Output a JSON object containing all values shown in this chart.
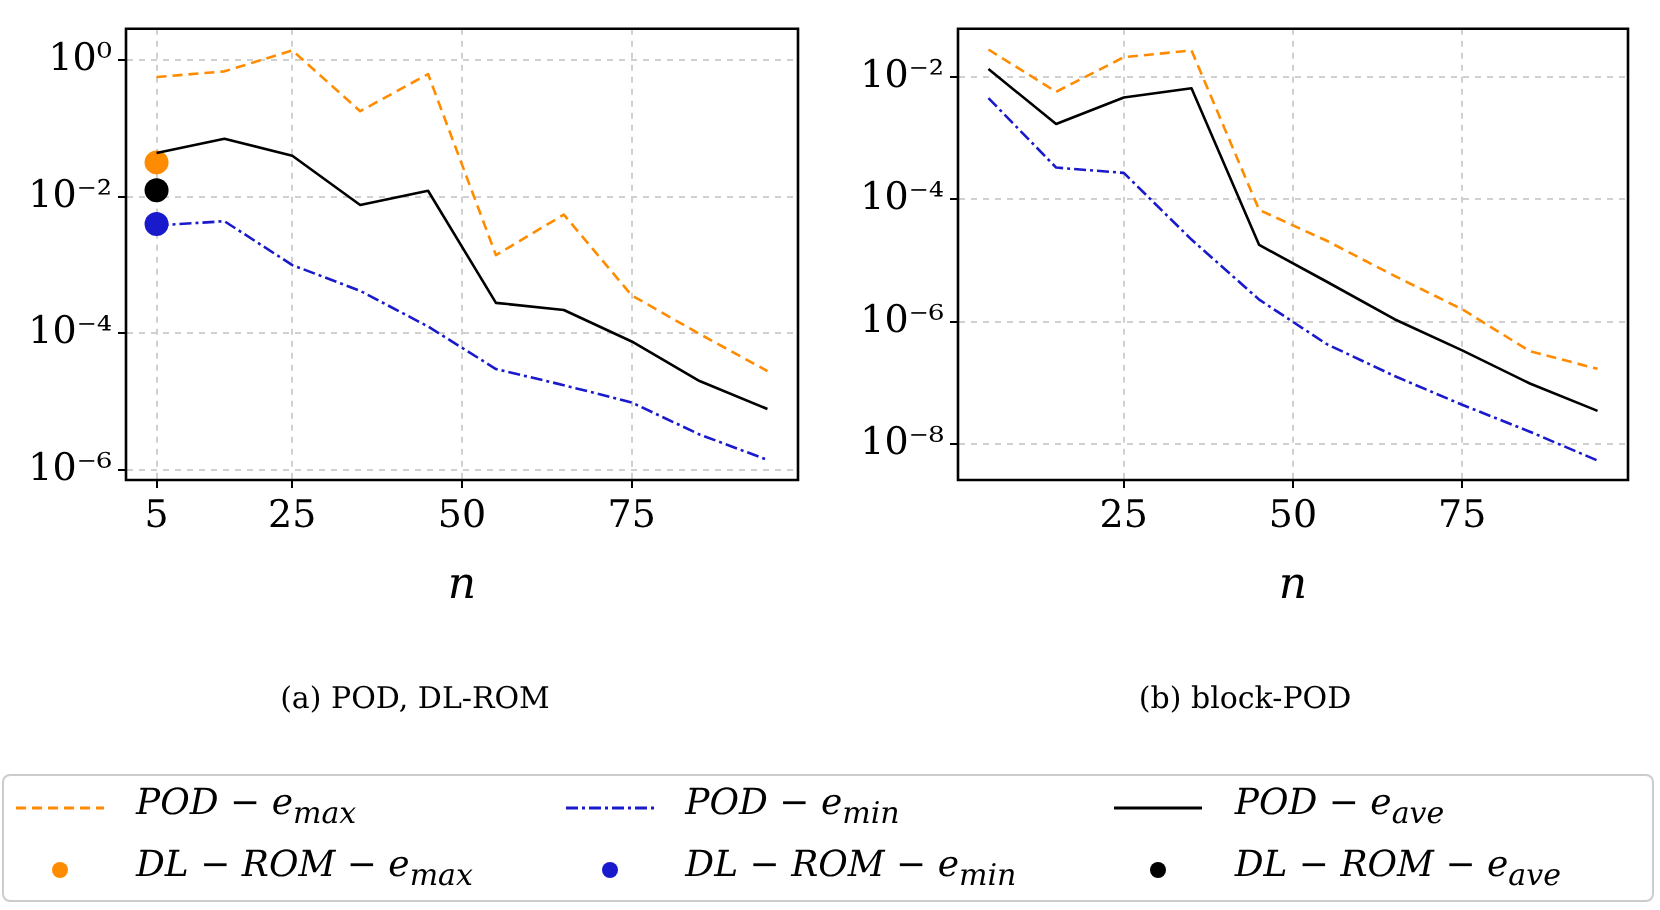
{
  "chart_data": [
    {
      "type": "line",
      "title": "(a) POD, DL-ROM",
      "xlabel": "n",
      "log": "y",
      "grid": true,
      "legend": "bottom",
      "marker": "none",
      "xlim": [
        0.5,
        99.5
      ],
      "xticks": [
        5,
        25,
        50,
        75
      ],
      "ylim": [
        7.1e-07,
        2.9
      ],
      "yticks": [
        {
          "value": 1,
          "label": "10⁰"
        },
        {
          "value": 0.01,
          "label": "10⁻²"
        },
        {
          "value": 0.0001,
          "label": "10⁻⁴"
        },
        {
          "value": 1e-06,
          "label": "10⁻⁶"
        }
      ],
      "x": [
        5,
        15,
        25,
        35,
        45,
        55,
        65,
        75,
        85,
        95
      ],
      "series": [
        {
          "name": "POD − e$_{max}$",
          "color": "#ff8c00",
          "line_style": "dashed",
          "values": [
            0.57,
            0.69,
            1.4,
            0.18,
            0.63,
            0.0014,
            0.0055,
            0.00036,
            9.8e-05,
            2.8e-05
          ]
        },
        {
          "name": "POD − e$_{min}$",
          "color": "#1a1acd",
          "line_style": "dashdot",
          "values": [
            0.0038,
            0.0044,
            0.001,
            0.00042,
            0.000126,
            3e-05,
            1.74e-05,
            9.7e-06,
            3.3e-06,
            1.4e-06
          ]
        },
        {
          "name": "POD − e$_{ave}$",
          "color": "#000000",
          "line_style": "solid",
          "values": [
            0.044,
            0.071,
            0.04,
            0.0076,
            0.0123,
            0.00028,
            0.00022,
            7.6e-05,
            2e-05,
            7.8e-06
          ]
        },
        {
          "name": "DL − ROM − e$_{max}$",
          "type": "scatter",
          "marker": "circle",
          "color": "#ff8c00",
          "values": [
            0.032,
            null,
            null,
            null,
            null,
            null,
            null,
            null,
            null,
            null
          ]
        },
        {
          "name": "DL − ROM − e$_{min}$",
          "type": "scatter",
          "marker": "circle",
          "color": "#1a1acd",
          "values": [
            0.004,
            null,
            null,
            null,
            null,
            null,
            null,
            null,
            null,
            null
          ]
        },
        {
          "name": "DL − ROM − e$_{ave}$",
          "type": "scatter",
          "marker": "circle",
          "color": "#000000",
          "values": [
            0.0125,
            null,
            null,
            null,
            null,
            null,
            null,
            null,
            null,
            null
          ]
        }
      ]
    },
    {
      "type": "line",
      "title": "(b) block-POD",
      "xlabel": "n",
      "log": "y",
      "grid": true,
      "legend": "bottom",
      "marker": "none",
      "xlim": [
        0.5,
        99.5
      ],
      "xticks": [
        25,
        50,
        75
      ],
      "ylim": [
        2.6e-09,
        0.061
      ],
      "yticks": [
        {
          "value": 0.01,
          "label": "10⁻²"
        },
        {
          "value": 0.0001,
          "label": "10⁻⁴"
        },
        {
          "value": 1e-06,
          "label": "10⁻⁶"
        },
        {
          "value": 1e-08,
          "label": "10⁻⁸"
        }
      ],
      "x": [
        5,
        15,
        25,
        35,
        45,
        55,
        65,
        75,
        85,
        95
      ],
      "series": [
        {
          "name": "POD − e$_{max}$",
          "color": "#ff8c00",
          "line_style": "dashed",
          "values": [
            0.028,
            0.0057,
            0.021,
            0.027,
            6.7e-05,
            2.1e-05,
            5.6e-06,
            1.6e-06,
            3.3e-07,
            1.7e-07
          ]
        },
        {
          "name": "POD − e$_{min}$",
          "color": "#1a1acd",
          "line_style": "dashdot",
          "values": [
            0.0045,
            0.00033,
            0.00027,
            2.2e-05,
            2.3e-06,
            4.3e-07,
            1.3e-07,
            4.4e-08,
            1.6e-08,
            5.4e-09
          ]
        },
        {
          "name": "POD − e$_{ave}$",
          "color": "#000000",
          "line_style": "solid",
          "values": [
            0.0134,
            0.0017,
            0.0046,
            0.0065,
            1.8e-05,
            4.5e-06,
            1.1e-06,
            3.4e-07,
            9.8e-08,
            3.5e-08
          ]
        }
      ]
    }
  ]
}
